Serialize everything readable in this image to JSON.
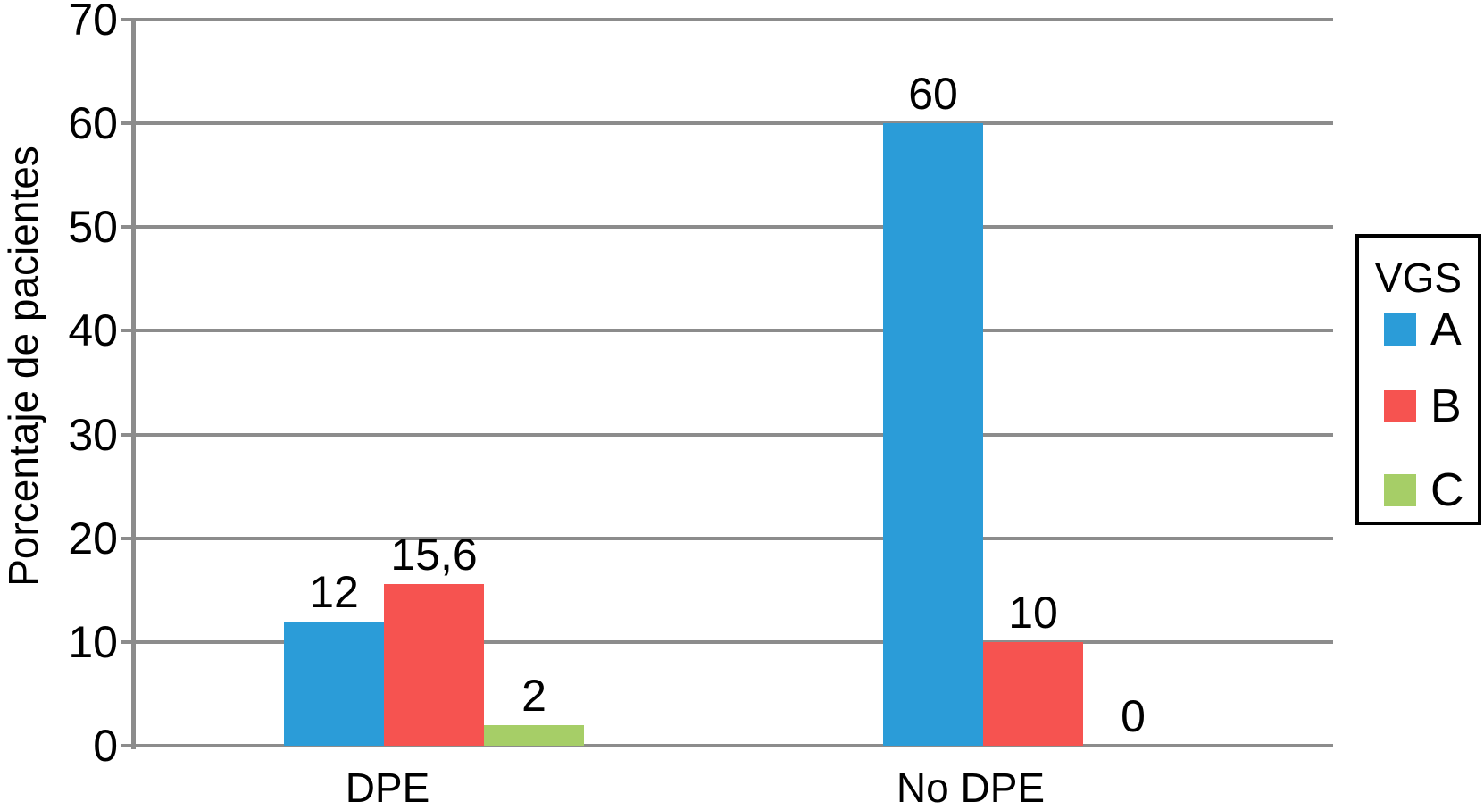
{
  "chart_data": {
    "type": "bar",
    "title": "",
    "xlabel": "",
    "ylabel": "Porcentaje de pacientes",
    "categories": [
      "DPE",
      "No DPE"
    ],
    "series": [
      {
        "name": "A",
        "color": "#2B9CD8",
        "values": [
          12,
          60
        ],
        "labels": [
          "12",
          "60"
        ]
      },
      {
        "name": "B",
        "color": "#F65350",
        "values": [
          15.6,
          10
        ],
        "labels": [
          "15,6",
          "10"
        ]
      },
      {
        "name": "C",
        "color": "#A6CE67",
        "values": [
          2,
          0
        ],
        "labels": [
          "2",
          "0"
        ]
      }
    ],
    "ylim": [
      0,
      70
    ],
    "yticks": [
      0,
      10,
      20,
      30,
      40,
      50,
      60,
      70
    ],
    "grid": true,
    "legend": {
      "title": "VGS",
      "position": "right",
      "entries": [
        "A",
        "B",
        "C"
      ]
    }
  },
  "colors": {
    "grid": "#8C8C8C",
    "axis": "#8C8C8C",
    "text": "#000000",
    "background": "#FFFFFF",
    "legend_border": "#000000"
  }
}
